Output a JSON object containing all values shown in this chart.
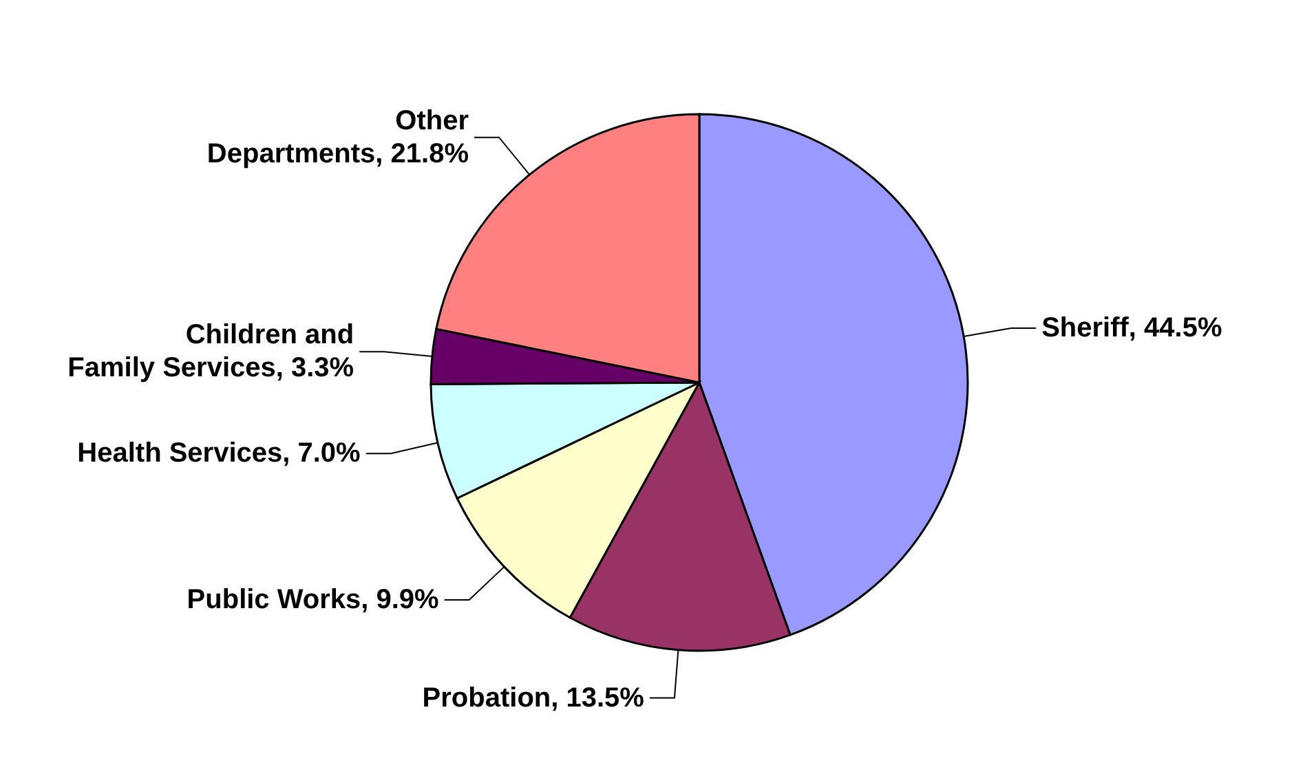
{
  "chart_data": {
    "type": "pie",
    "categories": [
      "Sheriff",
      "Probation",
      "Public Works",
      "Health Services",
      "Children and Family Services",
      "Other Departments"
    ],
    "values": [
      44.5,
      13.5,
      9.9,
      7.0,
      3.3,
      21.8
    ],
    "value_labels": [
      "44.5%",
      "13.5%",
      "9.9%",
      "7.0%",
      "3.3%",
      "21.8%"
    ],
    "colors": [
      "#9999ff",
      "#993366",
      "#ffffcc",
      "#ccffff",
      "#660066",
      "#ff8080"
    ],
    "legend": false
  }
}
